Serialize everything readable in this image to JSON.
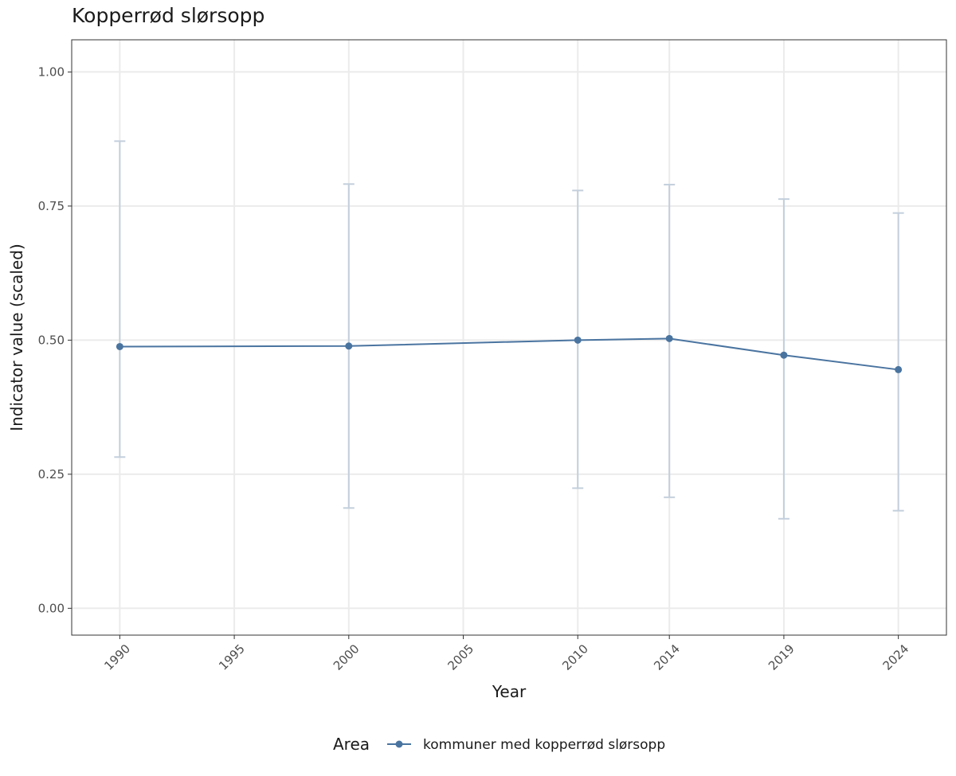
{
  "chart_data": {
    "type": "line",
    "title": "Kopperrød slørsopp",
    "xlabel": "Year",
    "ylabel": "Indicator value (scaled)",
    "x": [
      1990,
      2000,
      2010,
      2014,
      2019,
      2024
    ],
    "x_ticks": [
      1990,
      1995,
      2000,
      2005,
      2010,
      2014,
      2019,
      2024
    ],
    "x_tick_labels": [
      "1990",
      "1995",
      "2000",
      "2005",
      "2010",
      "2014",
      "2019",
      "2024"
    ],
    "y_ticks": [
      0,
      0.25,
      0.5,
      0.75,
      1
    ],
    "y_tick_labels": [
      "0.00",
      "0.25",
      "0.50",
      "0.75",
      "1.00"
    ],
    "xlim": [
      1987.9,
      2026.1
    ],
    "ylim": [
      -0.05,
      1.06
    ],
    "grid": true,
    "legend_position": "bottom",
    "legend_title": "Area",
    "series": [
      {
        "name": "kommuner med kopperrød slørsopp",
        "color": "#4a74a0",
        "values": [
          0.488,
          0.489,
          0.5,
          0.503,
          0.472,
          0.445
        ],
        "lower": [
          0.282,
          0.187,
          0.224,
          0.207,
          0.167,
          0.182
        ],
        "upper": [
          0.871,
          0.791,
          0.779,
          0.79,
          0.763,
          0.737
        ]
      }
    ]
  }
}
